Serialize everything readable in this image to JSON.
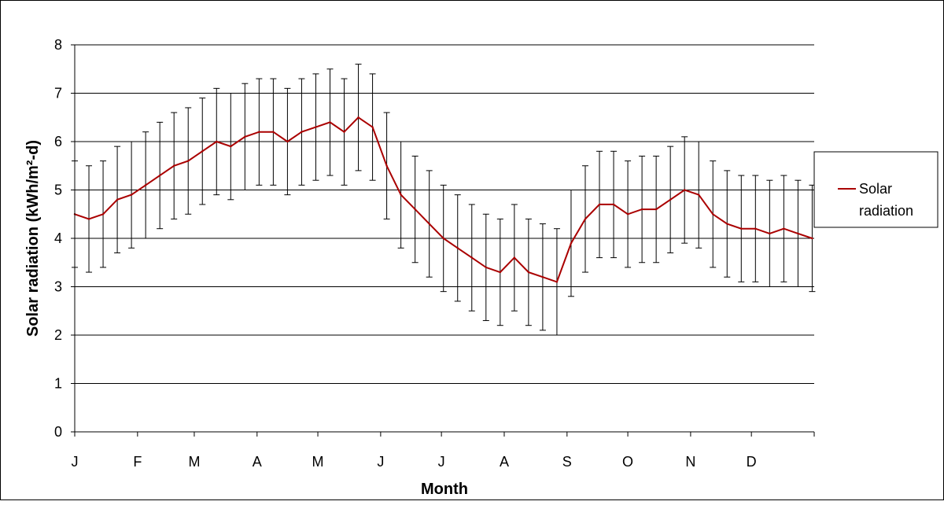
{
  "chart_data": {
    "type": "line",
    "title": "",
    "xlabel": "Month",
    "ylabel": "Solar radiation (kWh/m²-d)",
    "ylim": [
      0,
      8
    ],
    "yticks": [
      0,
      1,
      2,
      3,
      4,
      5,
      6,
      7,
      8
    ],
    "xlim": [
      1,
      366
    ],
    "grid": true,
    "legend_placement": "right",
    "months": [
      {
        "label": "J",
        "day": 1
      },
      {
        "label": "F",
        "day": 32
      },
      {
        "label": "M",
        "day": 60
      },
      {
        "label": "A",
        "day": 91
      },
      {
        "label": "M",
        "day": 121
      },
      {
        "label": "J",
        "day": 152
      },
      {
        "label": "J",
        "day": 182
      },
      {
        "label": "A",
        "day": 213
      },
      {
        "label": "S",
        "day": 244
      },
      {
        "label": "O",
        "day": 274
      },
      {
        "label": "N",
        "day": 305
      },
      {
        "label": "D",
        "day": 335
      }
    ],
    "series": [
      {
        "name": "Solar radiation",
        "color": "#aa0000",
        "error_bar_color": "#000000",
        "error_bar_halfwidth": 1.1,
        "x": [
          1,
          8,
          15,
          22,
          29,
          36,
          43,
          50,
          57,
          64,
          71,
          78,
          85,
          92,
          99,
          106,
          113,
          120,
          127,
          134,
          141,
          148,
          155,
          162,
          169,
          176,
          183,
          190,
          197,
          204,
          211,
          218,
          225,
          232,
          239,
          246,
          253,
          260,
          267,
          274,
          281,
          288,
          295,
          302,
          309,
          316,
          323,
          330,
          337,
          344,
          351,
          358,
          365
        ],
        "values": [
          4.5,
          4.4,
          4.5,
          4.8,
          4.9,
          5.1,
          5.3,
          5.5,
          5.6,
          5.8,
          6.0,
          5.9,
          6.1,
          6.2,
          6.2,
          6.0,
          6.2,
          6.3,
          6.4,
          6.2,
          6.5,
          6.3,
          5.5,
          4.9,
          4.6,
          4.3,
          4.0,
          3.8,
          3.6,
          3.4,
          3.3,
          3.6,
          3.3,
          3.2,
          3.1,
          3.9,
          4.4,
          4.7,
          4.7,
          4.5,
          4.6,
          4.6,
          4.8,
          5.0,
          4.9,
          4.5,
          4.3,
          4.2,
          4.2,
          4.1,
          4.2,
          4.1,
          4.0
        ]
      }
    ]
  }
}
